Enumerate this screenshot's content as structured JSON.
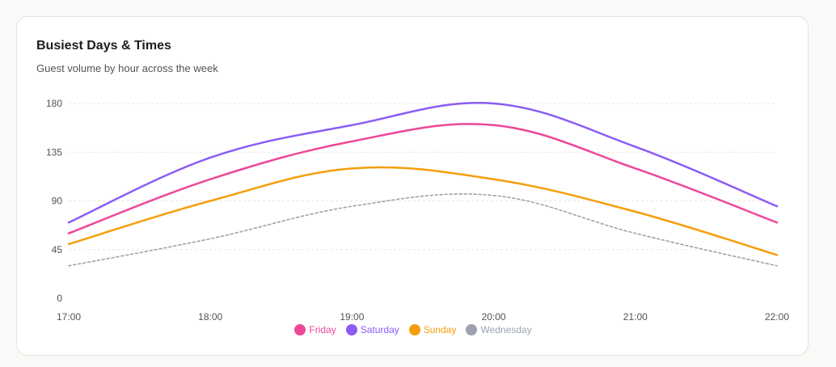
{
  "card": {
    "title": "Busiest Days & Times",
    "subtitle": "Guest volume by hour across the week"
  },
  "chart_data": {
    "type": "line",
    "x": [
      "17:00",
      "18:00",
      "19:00",
      "20:00",
      "21:00",
      "22:00"
    ],
    "ylim": [
      0,
      180
    ],
    "yticks": [
      "0",
      "45",
      "90",
      "135",
      "180"
    ],
    "grid": true,
    "legend_position": "bottom-center",
    "series": [
      {
        "name": "Friday",
        "color": "#ec4899",
        "dashed": false,
        "values": [
          60,
          110,
          145,
          160,
          120,
          70
        ]
      },
      {
        "name": "Saturday",
        "color": "#8b5cf6",
        "dashed": false,
        "values": [
          70,
          130,
          160,
          180,
          140,
          85
        ]
      },
      {
        "name": "Sunday",
        "color": "#f59e0b",
        "dashed": false,
        "values": [
          50,
          90,
          120,
          110,
          80,
          40
        ]
      },
      {
        "name": "Wednesday",
        "color": "#9ca3af",
        "dashed": true,
        "values": [
          30,
          55,
          85,
          95,
          60,
          30
        ]
      }
    ]
  }
}
